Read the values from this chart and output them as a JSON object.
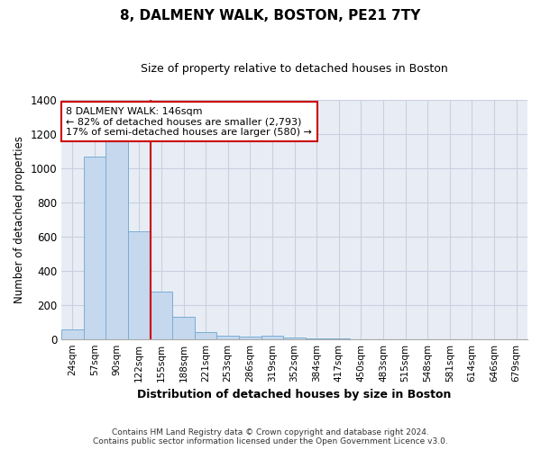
{
  "title": "8, DALMENY WALK, BOSTON, PE21 7TY",
  "subtitle": "Size of property relative to detached houses in Boston",
  "xlabel": "Distribution of detached houses by size in Boston",
  "ylabel": "Number of detached properties",
  "bar_color": "#c5d8ee",
  "bar_edge_color": "#7aadd4",
  "grid_color": "#c8d0e0",
  "background_color": "#e8edf5",
  "annotation_box_color": "#cc0000",
  "vline_color": "#cc0000",
  "annotation_text": "8 DALMENY WALK: 146sqm\n← 82% of detached houses are smaller (2,793)\n17% of semi-detached houses are larger (580) →",
  "footer_text": "Contains HM Land Registry data © Crown copyright and database right 2024.\nContains public sector information licensed under the Open Government Licence v3.0.",
  "categories": [
    "24sqm",
    "57sqm",
    "90sqm",
    "122sqm",
    "155sqm",
    "188sqm",
    "221sqm",
    "253sqm",
    "286sqm",
    "319sqm",
    "352sqm",
    "384sqm",
    "417sqm",
    "450sqm",
    "483sqm",
    "515sqm",
    "548sqm",
    "581sqm",
    "614sqm",
    "646sqm",
    "679sqm"
  ],
  "values": [
    55,
    1065,
    1200,
    630,
    275,
    130,
    40,
    20,
    15,
    20,
    10,
    5,
    5,
    0,
    0,
    0,
    0,
    0,
    0,
    0,
    0
  ],
  "ylim": [
    0,
    1400
  ],
  "yticks": [
    0,
    200,
    400,
    600,
    800,
    1000,
    1200,
    1400
  ],
  "vline_x_index": 3.5
}
